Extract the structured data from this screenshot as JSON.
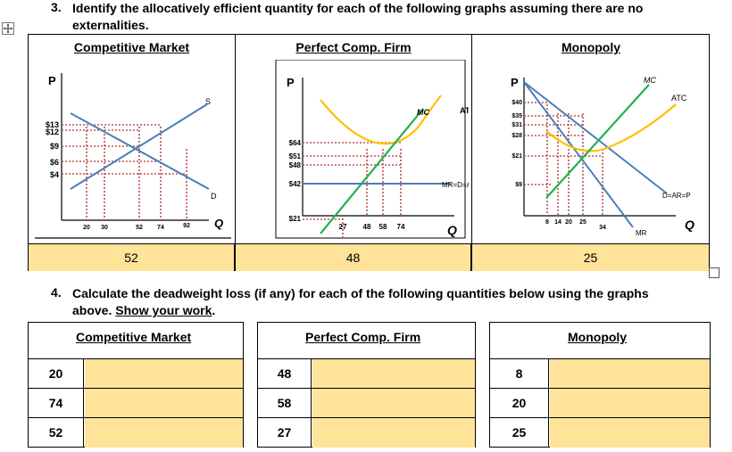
{
  "question3": {
    "number": "3.",
    "line1": "Identify the allocatively efficient quantity for each of the following graphs assuming there are no",
    "line2": "externalities."
  },
  "columns": [
    {
      "title": "Competitive Market",
      "answer": "52"
    },
    {
      "title": "Perfect Comp. Firm",
      "answer": "48"
    },
    {
      "title": "Monopoly",
      "answer": "25"
    }
  ],
  "graph_competitive": {
    "p_axis": "P",
    "q_axis": "Q",
    "price_ticks": [
      "$13",
      "$12",
      "$9",
      "$6",
      "$4"
    ],
    "qty_ticks": [
      "20",
      "30",
      "52",
      "74",
      "92"
    ],
    "supply_label": "S",
    "demand_label": "D"
  },
  "graph_pcfirm": {
    "p_axis": "P",
    "q_axis": "Q",
    "price_ticks": [
      "$64",
      "$51",
      "$48",
      "$42",
      "$21"
    ],
    "qty_ticks": [
      "27",
      "48",
      "58",
      "74"
    ],
    "mc_label": "MC",
    "atc_label": "ATC",
    "mr_label": "MR=D=AR=P"
  },
  "graph_monopoly": {
    "p_axis": "P",
    "q_axis": "Q",
    "price_ticks": [
      "$40",
      "$35",
      "$31",
      "$28",
      "$21",
      "$9"
    ],
    "qty_ticks": [
      "8",
      "14",
      "20",
      "25",
      "34"
    ],
    "mc_label": "MC",
    "atc_label": "ATC",
    "demand_label": "D=AR=P",
    "mr_label": "MR"
  },
  "question4": {
    "number": "4.",
    "line1": "Calculate the deadweight loss (if any) for each of the following quantities below using the graphs",
    "line2_pre": "above. ",
    "line2_link": "Show your work",
    "line2_post": "."
  },
  "dwl_tables": [
    {
      "title": "Competitive Market",
      "quantities": [
        "20",
        "74",
        "52"
      ]
    },
    {
      "title": "Perfect Comp. Firm",
      "quantities": [
        "48",
        "58",
        "27"
      ]
    },
    {
      "title": "Monopoly",
      "quantities": [
        "8",
        "20",
        "25"
      ]
    }
  ],
  "colors": {
    "answer_fill": "#ffe399",
    "demand_blue": "#4a7ebb",
    "supply_blue": "#4a7ebb",
    "mc_green": "#22b14c",
    "atc_yellow": "#ffc000",
    "guide_red": "#c0504d"
  }
}
